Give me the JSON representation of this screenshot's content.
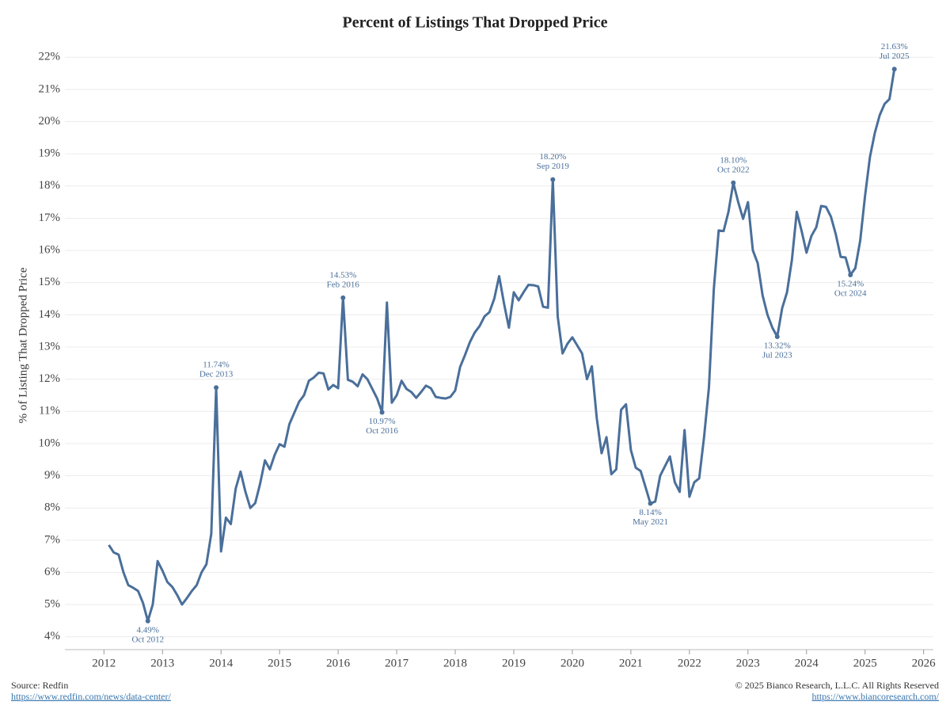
{
  "chart_data": {
    "type": "line",
    "title": "Percent of Listings That Dropped Price",
    "y_label": "% of Listing That Dropped Price",
    "source": "Source: Redfin",
    "source_url": "https://www.redfin.com/news/data-center/",
    "copyright": "© 2025 Bianco Research, L.L.C. All Rights Reserved",
    "copyright_url": "https://www.biancoresearch.com/",
    "grid": true,
    "xlim": [
      "2011-05",
      "2026-03"
    ],
    "xticks": [
      2012,
      2013,
      2014,
      2015,
      2016,
      2017,
      2018,
      2019,
      2020,
      2021,
      2022,
      2023,
      2024,
      2025,
      2026
    ],
    "ylim": [
      3.6,
      22.4
    ],
    "yticks": [
      {
        "value": 4,
        "label": "4%"
      },
      {
        "value": 5,
        "label": "5%"
      },
      {
        "value": 6,
        "label": "6%"
      },
      {
        "value": 7,
        "label": "7%"
      },
      {
        "value": 8,
        "label": "8%"
      },
      {
        "value": 9,
        "label": "9%"
      },
      {
        "value": 10,
        "label": "10%"
      },
      {
        "value": 11,
        "label": "11%"
      },
      {
        "value": 12,
        "label": "12%"
      },
      {
        "value": 13,
        "label": "13%"
      },
      {
        "value": 14,
        "label": "14%"
      },
      {
        "value": 15,
        "label": "15%"
      },
      {
        "value": 16,
        "label": "16%"
      },
      {
        "value": 17,
        "label": "17%"
      },
      {
        "value": 18,
        "label": "18%"
      },
      {
        "value": 19,
        "label": "19%"
      },
      {
        "value": 20,
        "label": "20%"
      },
      {
        "value": 21,
        "label": "21%"
      },
      {
        "value": 22,
        "label": "22%"
      }
    ],
    "x": [
      "2012-02",
      "2012-03",
      "2012-04",
      "2012-05",
      "2012-06",
      "2012-07",
      "2012-08",
      "2012-09",
      "2012-10",
      "2012-11",
      "2012-12",
      "2013-01",
      "2013-02",
      "2013-03",
      "2013-04",
      "2013-05",
      "2013-06",
      "2013-07",
      "2013-08",
      "2013-09",
      "2013-10",
      "2013-11",
      "2013-12",
      "2014-01",
      "2014-02",
      "2014-03",
      "2014-04",
      "2014-05",
      "2014-06",
      "2014-07",
      "2014-08",
      "2014-09",
      "2014-10",
      "2014-11",
      "2014-12",
      "2015-01",
      "2015-02",
      "2015-03",
      "2015-04",
      "2015-05",
      "2015-06",
      "2015-07",
      "2015-08",
      "2015-09",
      "2015-10",
      "2015-11",
      "2015-12",
      "2016-01",
      "2016-02",
      "2016-03",
      "2016-04",
      "2016-05",
      "2016-06",
      "2016-07",
      "2016-08",
      "2016-09",
      "2016-10",
      "2016-11",
      "2016-12",
      "2017-01",
      "2017-02",
      "2017-03",
      "2017-04",
      "2017-05",
      "2017-06",
      "2017-07",
      "2017-08",
      "2017-09",
      "2017-10",
      "2017-11",
      "2017-12",
      "2018-01",
      "2018-02",
      "2018-03",
      "2018-04",
      "2018-05",
      "2018-06",
      "2018-07",
      "2018-08",
      "2018-09",
      "2018-10",
      "2018-11",
      "2018-12",
      "2019-01",
      "2019-02",
      "2019-03",
      "2019-04",
      "2019-05",
      "2019-06",
      "2019-07",
      "2019-08",
      "2019-09",
      "2019-10",
      "2019-11",
      "2019-12",
      "2020-01",
      "2020-02",
      "2020-03",
      "2020-04",
      "2020-05",
      "2020-06",
      "2020-07",
      "2020-08",
      "2020-09",
      "2020-10",
      "2020-11",
      "2020-12",
      "2021-01",
      "2021-02",
      "2021-03",
      "2021-04",
      "2021-05",
      "2021-06",
      "2021-07",
      "2021-08",
      "2021-09",
      "2021-10",
      "2021-11",
      "2021-12",
      "2022-01",
      "2022-02",
      "2022-03",
      "2022-04",
      "2022-05",
      "2022-06",
      "2022-07",
      "2022-08",
      "2022-09",
      "2022-10",
      "2022-11",
      "2022-12",
      "2023-01",
      "2023-02",
      "2023-03",
      "2023-04",
      "2023-05",
      "2023-06",
      "2023-07",
      "2023-08",
      "2023-09",
      "2023-10",
      "2023-11",
      "2023-12",
      "2024-01",
      "2024-02",
      "2024-03",
      "2024-04",
      "2024-05",
      "2024-06",
      "2024-07",
      "2024-08",
      "2024-09",
      "2024-10",
      "2024-11",
      "2024-12",
      "2025-01",
      "2025-02",
      "2025-03",
      "2025-04",
      "2025-05",
      "2025-06",
      "2025-07"
    ],
    "series": [
      {
        "name": "% of Listing That Dropped Price",
        "color": "#4a6f9a",
        "values": [
          6.85,
          6.62,
          6.55,
          6.0,
          5.6,
          5.52,
          5.42,
          5.05,
          4.49,
          5.0,
          6.35,
          6.05,
          5.7,
          5.55,
          5.3,
          5.0,
          5.2,
          5.42,
          5.6,
          6.0,
          6.25,
          7.2,
          11.74,
          6.65,
          7.7,
          7.5,
          8.6,
          9.13,
          8.5,
          8.0,
          8.15,
          8.75,
          9.48,
          9.2,
          9.65,
          9.98,
          9.9,
          10.6,
          10.95,
          11.3,
          11.5,
          11.95,
          12.05,
          12.2,
          12.18,
          11.68,
          11.82,
          11.72,
          14.53,
          11.98,
          11.92,
          11.78,
          12.15,
          12.0,
          11.7,
          11.4,
          10.97,
          14.38,
          11.27,
          11.5,
          11.95,
          11.7,
          11.6,
          11.42,
          11.6,
          11.8,
          11.72,
          11.45,
          11.42,
          11.4,
          11.45,
          11.65,
          12.38,
          12.75,
          13.15,
          13.45,
          13.65,
          13.95,
          14.08,
          14.5,
          15.2,
          14.35,
          13.6,
          14.7,
          14.45,
          14.7,
          14.93,
          14.92,
          14.88,
          14.25,
          14.22,
          18.2,
          13.95,
          12.8,
          13.1,
          13.3,
          13.05,
          12.8,
          12.0,
          12.4,
          10.8,
          9.7,
          10.2,
          9.05,
          9.2,
          11.05,
          11.22,
          9.8,
          9.25,
          9.15,
          8.65,
          8.14,
          8.2,
          9.0,
          9.3,
          9.6,
          8.8,
          8.5,
          10.42,
          8.35,
          8.8,
          8.92,
          10.2,
          11.75,
          14.8,
          16.62,
          16.6,
          17.2,
          18.1,
          17.5,
          16.98,
          17.5,
          16.0,
          15.6,
          14.6,
          14.0,
          13.6,
          13.32,
          14.2,
          14.7,
          15.7,
          17.2,
          16.6,
          15.93,
          16.45,
          16.72,
          17.38,
          17.35,
          17.05,
          16.5,
          15.8,
          15.78,
          15.24,
          15.45,
          16.3,
          17.7,
          18.9,
          19.65,
          20.2,
          20.55,
          20.7,
          21.63
        ]
      }
    ],
    "annotations": [
      {
        "x": "2012-10",
        "label": "4.49%",
        "date": "Oct 2012",
        "position": "below"
      },
      {
        "x": "2013-12",
        "label": "11.74%",
        "date": "Dec 2013",
        "position": "above"
      },
      {
        "x": "2016-02",
        "label": "14.53%",
        "date": "Feb 2016",
        "position": "above"
      },
      {
        "x": "2016-10",
        "label": "10.97%",
        "date": "Oct 2016",
        "position": "below"
      },
      {
        "x": "2019-09",
        "label": "18.20%",
        "date": "Sep 2019",
        "position": "above"
      },
      {
        "x": "2021-05",
        "label": "8.14%",
        "date": "May 2021",
        "position": "below"
      },
      {
        "x": "2022-10",
        "label": "18.10%",
        "date": "Oct 2022",
        "position": "above"
      },
      {
        "x": "2023-07",
        "label": "13.32%",
        "date": "Jul 2023",
        "position": "below"
      },
      {
        "x": "2024-10",
        "label": "15.24%",
        "date": "Oct 2024",
        "position": "below"
      },
      {
        "x": "2025-07",
        "label": "21.63%",
        "date": "Jul 2025",
        "position": "above"
      }
    ]
  }
}
